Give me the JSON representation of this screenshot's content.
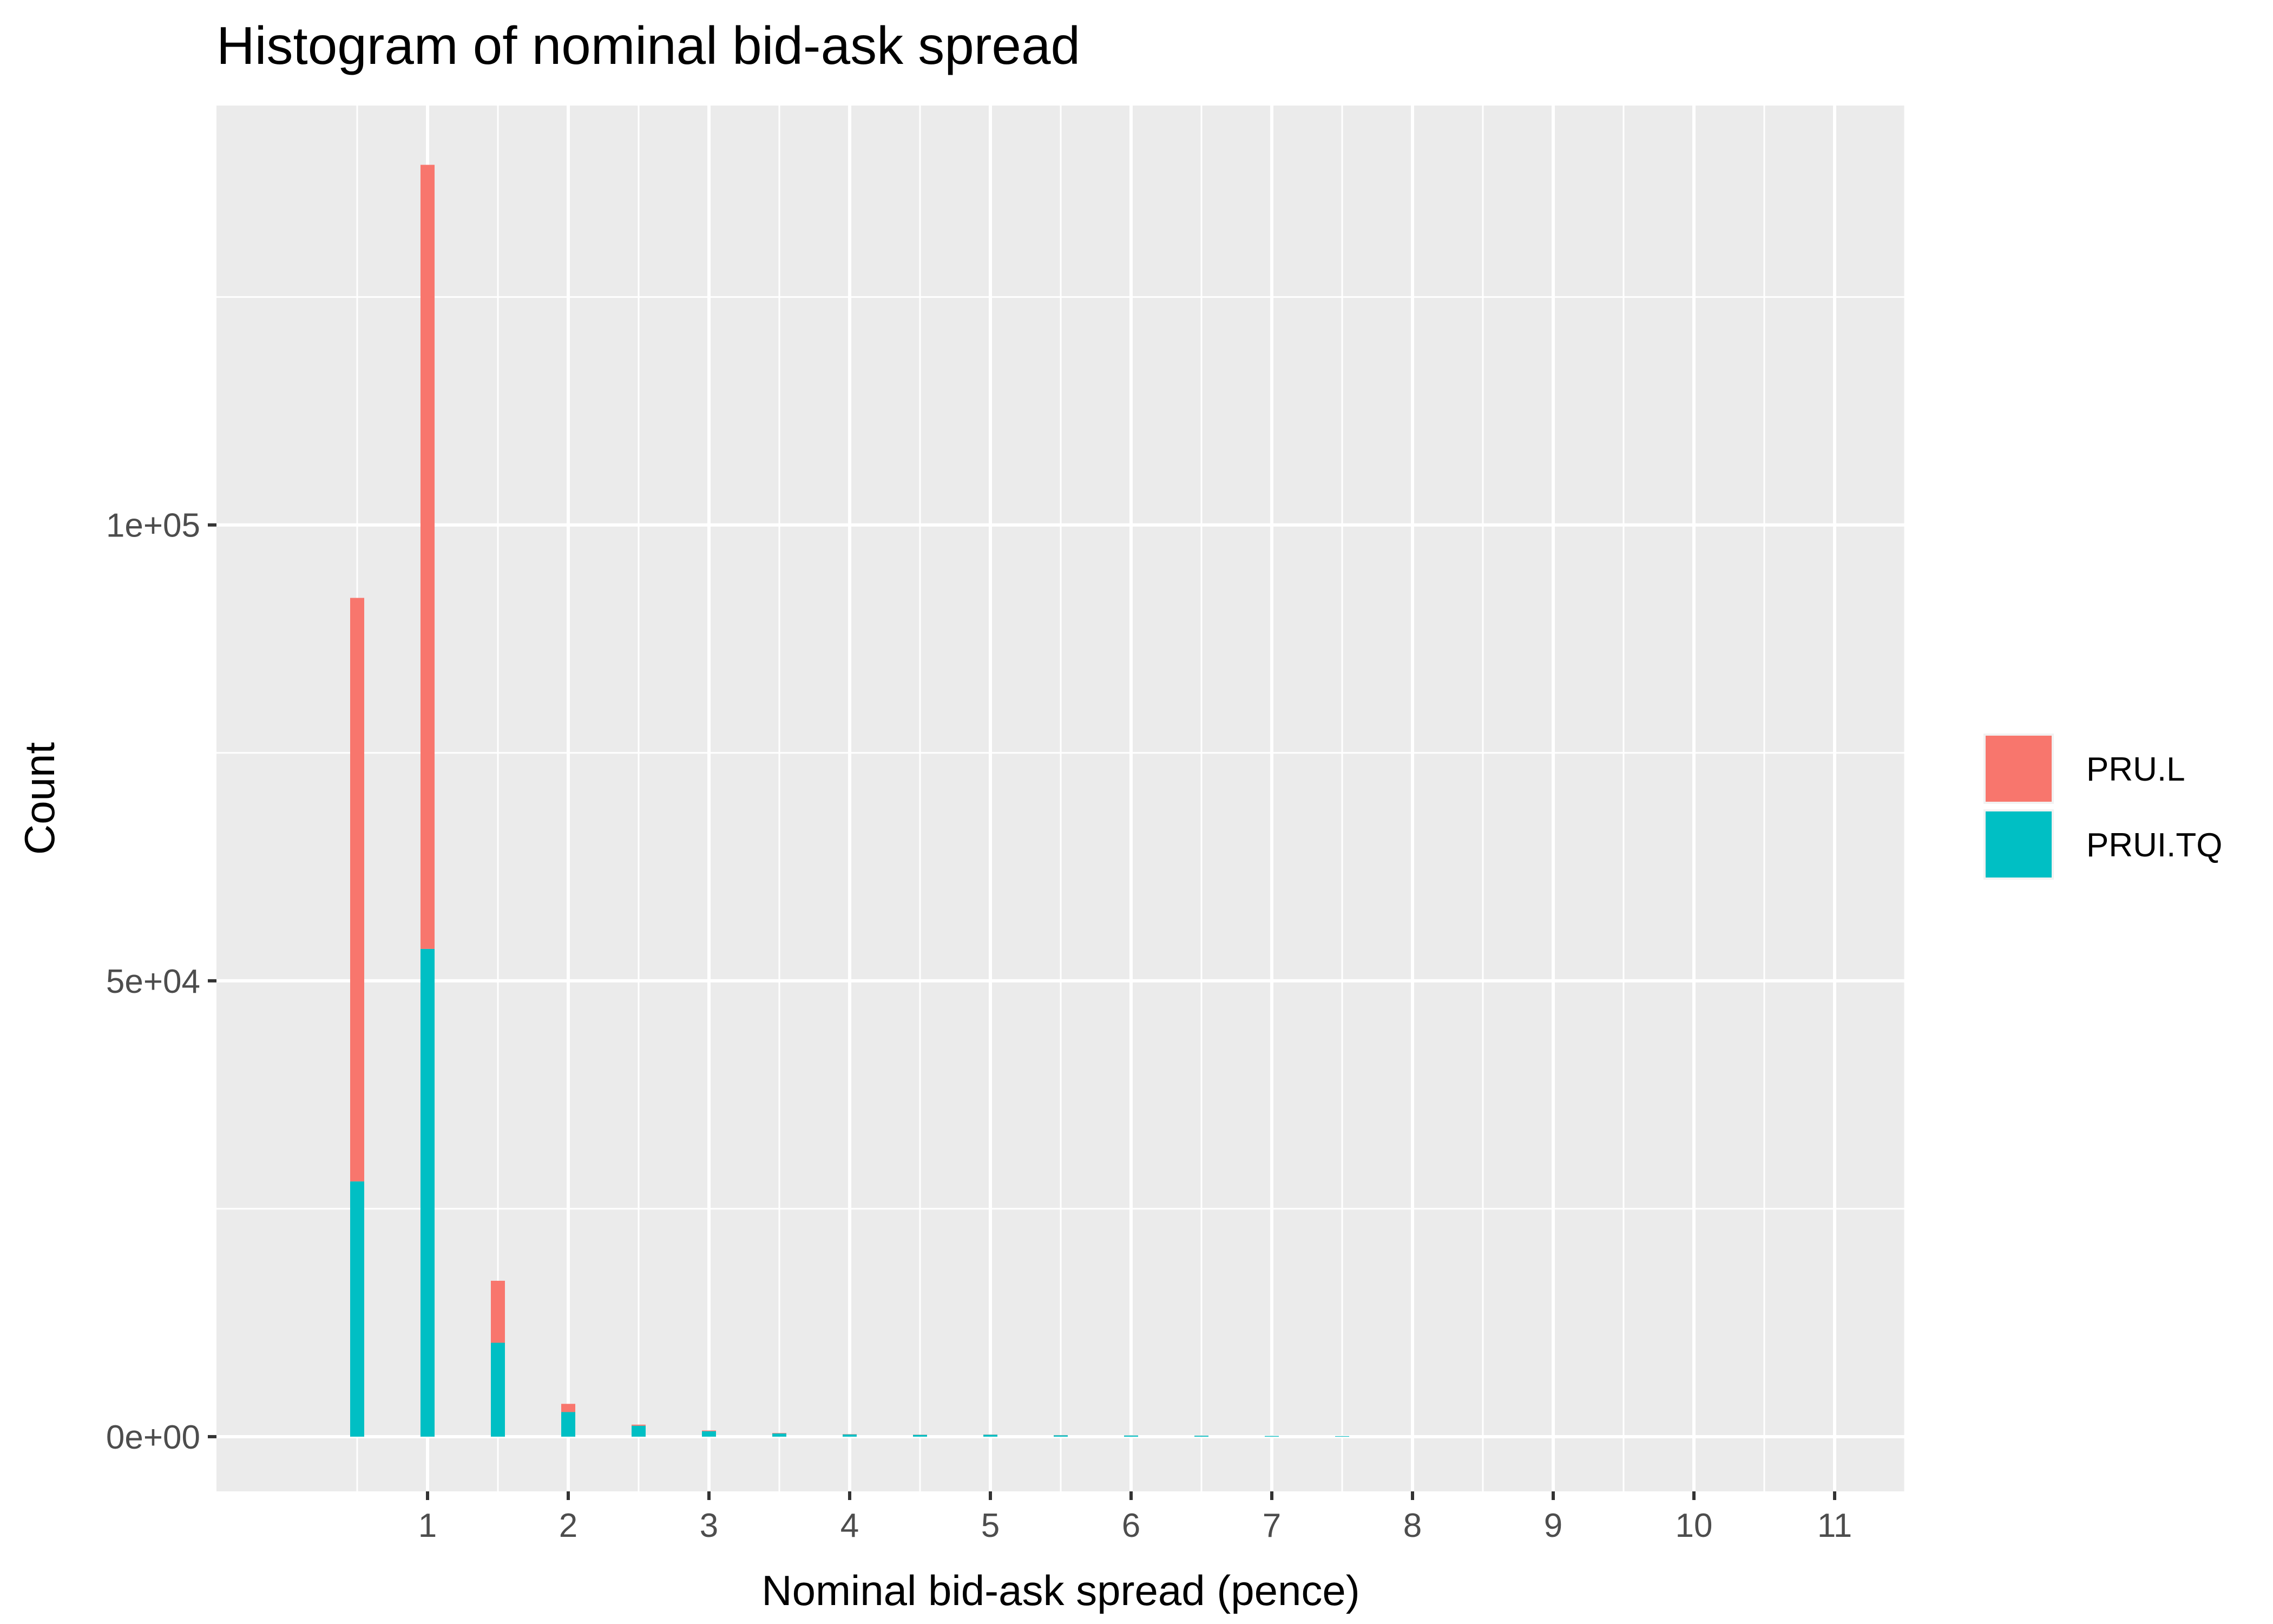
{
  "chart_data": {
    "type": "bar",
    "stacked": true,
    "title": "Histogram of nominal bid-ask spread",
    "xlabel": "Nominal bid-ask spread (pence)",
    "ylabel": "Count",
    "xlim": [
      -0.5,
      11.5
    ],
    "ylim": [
      -6000,
      146000
    ],
    "x_ticks": [
      1,
      2,
      3,
      4,
      5,
      6,
      7,
      8,
      9,
      10,
      11
    ],
    "x_tick_labels": [
      "1",
      "2",
      "3",
      "4",
      "5",
      "6",
      "7",
      "8",
      "9",
      "10",
      "11"
    ],
    "y_ticks": [
      0,
      50000,
      100000
    ],
    "y_tick_labels": [
      "0e+00",
      "5e+04",
      "1e+05"
    ],
    "grid": true,
    "legend_position": "right",
    "bin_width": 0.1,
    "x": [
      0.5,
      1.0,
      1.5,
      2.0,
      2.5,
      3.0,
      3.5,
      4.0,
      4.5,
      5.0,
      5.5,
      6.0,
      6.5,
      7.0,
      7.5
    ],
    "series": [
      {
        "name": "PRU.L",
        "color": "#F8766D",
        "values": [
          64000,
          86000,
          6800,
          900,
          120,
          80,
          50,
          30,
          20,
          20,
          15,
          10,
          10,
          5,
          5
        ]
      },
      {
        "name": "PRUI.TQ",
        "color": "#00BFC4",
        "values": [
          28000,
          53500,
          10300,
          2700,
          1200,
          600,
          350,
          250,
          200,
          220,
          150,
          130,
          110,
          80,
          60
        ]
      }
    ]
  }
}
